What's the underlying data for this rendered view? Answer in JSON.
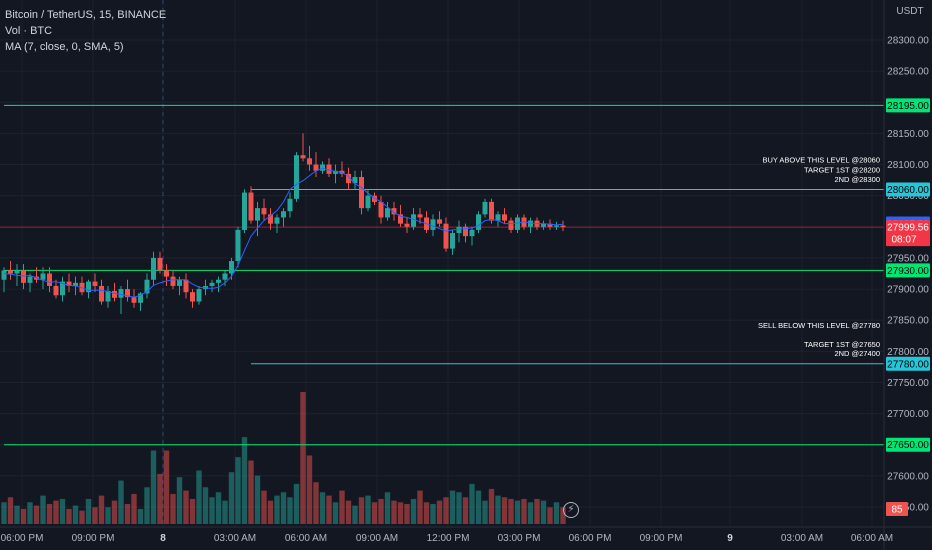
{
  "legend": {
    "symbol": "Bitcoin / TetherUS, 15, BINANCE",
    "volume": "Vol · BTC",
    "ma": "MA (7, close, 0, SMA, 5)"
  },
  "chart_data": {
    "type": "candlestick",
    "currency_label": "USDT",
    "grid": true,
    "ylim": [
      27545,
      28335
    ],
    "y_ticks": [
      28300,
      28250,
      28200,
      28150,
      28100,
      28050,
      27950,
      27900,
      27850,
      27800,
      27750,
      27700,
      27650,
      27600,
      27550
    ],
    "y_tick_labels": [
      "28300.00",
      "28250.00",
      "28200.00",
      "28150.00",
      "28100.00",
      "28050.00",
      "27950.00",
      "27900.00",
      "27850.00",
      "27800.00",
      "27750.00",
      "27700.00",
      "27650.00",
      "27600.00",
      "27550.00"
    ],
    "x_tick_labels": [
      "06:00 PM",
      "09:00 PM",
      "8",
      "03:00 AM",
      "06:00 AM",
      "09:00 AM",
      "12:00 PM",
      "03:00 PM",
      "06:00 PM",
      "09:00 PM",
      "9",
      "03:00 AM",
      "06:00 AM"
    ],
    "day_separator_label": "8",
    "horizontal_levels": [
      {
        "price": 28195.0,
        "label": "28195.00",
        "color": "#00e676",
        "start_index": 0
      },
      {
        "price": 28060.0,
        "label": "28060.00",
        "color": "#26c6da",
        "start_index": 38
      },
      {
        "price": 27930.0,
        "label": "27930.00",
        "color": "#00e676",
        "start_index": 0
      },
      {
        "price": 27780.0,
        "label": "27780.00",
        "color": "#26c6da",
        "start_index": 38
      },
      {
        "price": 27650.0,
        "label": "27650.00",
        "color": "#00e676",
        "start_index": 0
      }
    ],
    "current_price": {
      "price": 27999.56,
      "label": "27999.56",
      "countdown": "08:07",
      "color": "#f23645"
    },
    "ma_value": {
      "price": 28005.29,
      "label": "28005.29",
      "color": "#2962ff"
    },
    "volume_badge": "85",
    "annotations": [
      {
        "text": "BUY ABOVE THIS LEVEL @28060",
        "price": 28108
      },
      {
        "text": "TARGET 1ST @28200",
        "price": 28092
      },
      {
        "text": "2ND @28300",
        "price": 28077
      },
      {
        "text": "SELL BELOW THIS LEVEL @27780",
        "price": 27842
      },
      {
        "text": "TARGET 1ST @27650",
        "price": 27812
      },
      {
        "text": "2ND @27400",
        "price": 27797
      }
    ],
    "ohlc": [
      [
        27915,
        27935,
        27895,
        27930
      ],
      [
        27930,
        27945,
        27915,
        27925
      ],
      [
        27925,
        27940,
        27905,
        27930
      ],
      [
        27930,
        27940,
        27900,
        27910
      ],
      [
        27910,
        27925,
        27895,
        27920
      ],
      [
        27920,
        27935,
        27910,
        27915
      ],
      [
        27915,
        27935,
        27900,
        27925
      ],
      [
        27925,
        27935,
        27895,
        27905
      ],
      [
        27905,
        27915,
        27885,
        27890
      ],
      [
        27890,
        27920,
        27880,
        27912
      ],
      [
        27912,
        27925,
        27895,
        27905
      ],
      [
        27905,
        27920,
        27890,
        27910
      ],
      [
        27910,
        27920,
        27890,
        27895
      ],
      [
        27895,
        27915,
        27885,
        27912
      ],
      [
        27912,
        27925,
        27895,
        27905
      ],
      [
        27905,
        27915,
        27875,
        27880
      ],
      [
        27880,
        27905,
        27870,
        27897
      ],
      [
        27897,
        27910,
        27880,
        27886
      ],
      [
        27886,
        27905,
        27860,
        27900
      ],
      [
        27900,
        27915,
        27880,
        27887
      ],
      [
        27887,
        27900,
        27870,
        27878
      ],
      [
        27878,
        27895,
        27865,
        27893
      ],
      [
        27893,
        27925,
        27885,
        27915
      ],
      [
        27915,
        27960,
        27905,
        27950
      ],
      [
        27950,
        27960,
        27925,
        27930
      ],
      [
        27930,
        27940,
        27905,
        27920
      ],
      [
        27920,
        27930,
        27900,
        27905
      ],
      [
        27905,
        27920,
        27890,
        27915
      ],
      [
        27915,
        27925,
        27885,
        27895
      ],
      [
        27895,
        27900,
        27870,
        27880
      ],
      [
        27880,
        27905,
        27875,
        27900
      ],
      [
        27900,
        27915,
        27890,
        27905
      ],
      [
        27905,
        27915,
        27895,
        27910
      ],
      [
        27910,
        27920,
        27895,
        27915
      ],
      [
        27915,
        27930,
        27905,
        27925
      ],
      [
        27925,
        27950,
        27915,
        27945
      ],
      [
        27945,
        28000,
        27935,
        27995
      ],
      [
        27995,
        28060,
        27990,
        28055
      ],
      [
        28055,
        28065,
        28005,
        28010
      ],
      [
        28010,
        28040,
        27985,
        28030
      ],
      [
        28030,
        28045,
        28010,
        28020
      ],
      [
        28020,
        28030,
        27995,
        28005
      ],
      [
        28005,
        28020,
        27990,
        28015
      ],
      [
        28015,
        28030,
        28000,
        28025
      ],
      [
        28025,
        28055,
        28015,
        28045
      ],
      [
        28045,
        28120,
        28040,
        28115
      ],
      [
        28115,
        28150,
        28105,
        28110
      ],
      [
        28110,
        28130,
        28090,
        28100
      ],
      [
        28100,
        28120,
        28080,
        28090
      ],
      [
        28090,
        28105,
        28085,
        28100
      ],
      [
        28100,
        28110,
        28080,
        28085
      ],
      [
        28085,
        28100,
        28070,
        28090
      ],
      [
        28090,
        28105,
        28080,
        28085
      ],
      [
        28085,
        28095,
        28060,
        28070
      ],
      [
        28070,
        28090,
        28060,
        28080
      ],
      [
        28080,
        28090,
        28020,
        28030
      ],
      [
        28030,
        28060,
        28025,
        28050
      ],
      [
        28050,
        28055,
        28035,
        28040
      ],
      [
        28040,
        28050,
        28005,
        28015
      ],
      [
        28015,
        28040,
        28010,
        28030
      ],
      [
        28030,
        28040,
        28010,
        28020
      ],
      [
        28020,
        28035,
        28000,
        28005
      ],
      [
        28005,
        28015,
        27990,
        28000
      ],
      [
        28000,
        28030,
        27995,
        28020
      ],
      [
        28020,
        28030,
        28005,
        28015
      ],
      [
        28015,
        28025,
        27990,
        27995
      ],
      [
        27995,
        28020,
        27985,
        28012
      ],
      [
        28012,
        28025,
        28000,
        28005
      ],
      [
        28005,
        28015,
        27960,
        27965
      ],
      [
        27965,
        27995,
        27955,
        27990
      ],
      [
        27990,
        28010,
        27975,
        28000
      ],
      [
        28000,
        28005,
        27975,
        27985
      ],
      [
        27985,
        28000,
        27970,
        27995
      ],
      [
        27995,
        28025,
        27990,
        28020
      ],
      [
        28020,
        28045,
        28015,
        28040
      ],
      [
        28040,
        28045,
        28005,
        28010
      ],
      [
        28010,
        28025,
        28000,
        28020
      ],
      [
        28020,
        28030,
        28005,
        28010
      ],
      [
        28010,
        28015,
        27990,
        27995
      ],
      [
        27995,
        28020,
        27990,
        28015
      ],
      [
        28015,
        28020,
        27995,
        28000
      ],
      [
        28000,
        28015,
        27990,
        28010
      ],
      [
        28010,
        28015,
        27995,
        28000
      ],
      [
        28000,
        28010,
        27995,
        28005
      ],
      [
        28005,
        28012,
        27995,
        28000
      ],
      [
        28000,
        28008,
        27995,
        28002
      ],
      [
        28002,
        28010,
        27993,
        27999.56
      ]
    ],
    "ma_series": [
      27925,
      27924,
      27922,
      27921,
      27922,
      27918,
      27914,
      27911,
      27912,
      27909,
      27906,
      27905,
      27902,
      27898,
      27898,
      27898,
      27896,
      27893,
      27891,
      27889,
      27887,
      27890,
      27896,
      27906,
      27910,
      27913,
      27915,
      27915,
      27915,
      27908,
      27903,
      27902,
      27901,
      27903,
      27910,
      27920,
      27938,
      27962,
      27985,
      27998,
      28010,
      28018,
      28026,
      28040,
      28060,
      28068,
      28074,
      28082,
      28090,
      28094,
      28091,
      28089,
      28087,
      28081,
      28069,
      28063,
      28054,
      28046,
      28040,
      28032,
      28023,
      28017,
      28015,
      28012,
      28008,
      28005,
      28001,
      27997,
      27993,
      27995,
      27996,
      27997,
      27998,
      28002,
      28010,
      28012,
      28010,
      28005,
      28005,
      28006,
      28008,
      28006,
      28005,
      28005,
      28004,
      28003,
      28004
    ],
    "volume": [
      13,
      16,
      11,
      9,
      13,
      11,
      17,
      12,
      14,
      15,
      9,
      11,
      8,
      15,
      10,
      17,
      10,
      14,
      26,
      12,
      18,
      9,
      22,
      44,
      30,
      44,
      18,
      28,
      20,
      15,
      32,
      22,
      16,
      19,
      14,
      31,
      40,
      52,
      38,
      29,
      20,
      14,
      17,
      19,
      16,
      24,
      79,
      41,
      25,
      19,
      17,
      13,
      20,
      14,
      11,
      16,
      17,
      13,
      15,
      19,
      14,
      13,
      12,
      15,
      20,
      13,
      12,
      14,
      16,
      20,
      19,
      16,
      24,
      20,
      14,
      21,
      17,
      16,
      15,
      14,
      15,
      13,
      15,
      14,
      10,
      13,
      10
    ]
  }
}
